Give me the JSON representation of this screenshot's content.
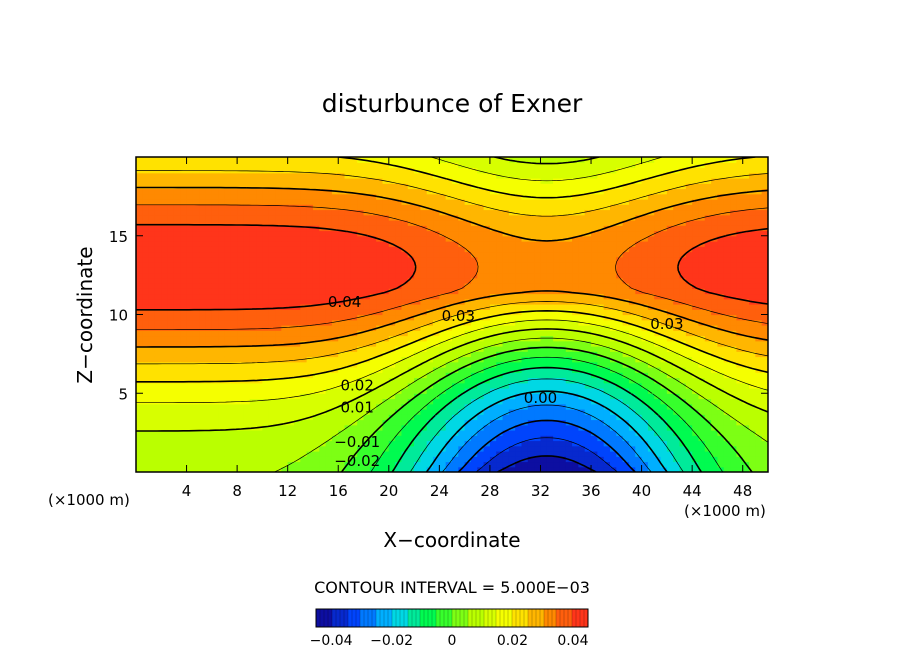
{
  "chart_data": {
    "type": "contour",
    "title": "disturbunce of Exner",
    "xlabel": "X−coordinate",
    "ylabel": "Z−coordinate",
    "x_unit": "(×1000 m)",
    "y_unit": "(×1000 m)",
    "xlim": [
      0,
      50
    ],
    "ylim": [
      0,
      20
    ],
    "xticks": [
      4,
      8,
      12,
      16,
      20,
      24,
      28,
      32,
      36,
      40,
      44,
      48
    ],
    "yticks": [
      5,
      10,
      15
    ],
    "contour_interval_text": "CONTOUR INTERVAL = 5.000E−03",
    "contour_interval": 0.005,
    "value_range": [
      -0.045,
      0.045
    ],
    "colorbar_ticks": [
      "−0.04",
      "−0.02",
      "0",
      "0.02",
      "0.04"
    ],
    "colorbar_tick_values": [
      -0.04,
      -0.02,
      0,
      0.02,
      0.04
    ],
    "contour_labels": [
      {
        "text": "0.04",
        "x": 16.5,
        "y": 10.8
      },
      {
        "text": "0.03",
        "x": 25.5,
        "y": 9.9
      },
      {
        "text": "0.03",
        "x": 42,
        "y": 9.4
      },
      {
        "text": "0.02",
        "x": 17.5,
        "y": 5.5
      },
      {
        "text": "0.01",
        "x": 17.5,
        "y": 4.1
      },
      {
        "text": "0.00",
        "x": 32,
        "y": 4.7
      },
      {
        "text": "−0.01",
        "x": 17.5,
        "y": 1.9
      },
      {
        "text": "−0.02",
        "x": 17.5,
        "y": 0.7
      }
    ],
    "field_description": "Positive maxima (~0.045) centered near z=13 at left (x<22) and right (x>42) edges; saddle near x=32, z=13; dip of negative values near surface at x=32 (~-0.045)",
    "colormap": [
      "#10008a",
      "#0046ff",
      "#00d2ff",
      "#00ff40",
      "#b4ff00",
      "#ffff00",
      "#ff8c00",
      "#ff2020"
    ]
  }
}
